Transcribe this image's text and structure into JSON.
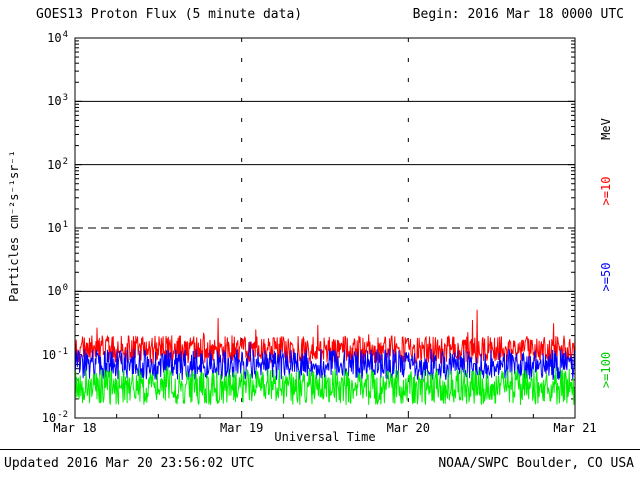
{
  "header": {
    "title": "GOES13 Proton Flux (5 minute data)",
    "begin": "Begin: 2016 Mar 18 0000 UTC"
  },
  "footer": {
    "updated": "Updated 2016 Mar 20 23:56:02 UTC",
    "source": "NOAA/SWPC Boulder, CO USA"
  },
  "right_axis": {
    "unit_label": "MeV",
    "unit_color": "#000000",
    "series_labels": [
      {
        "text": ">=10",
        "color": "#ff0000"
      },
      {
        "text": ">=50",
        "color": "#0000ff"
      },
      {
        "text": ">=100",
        "color": "#00cc00"
      }
    ]
  },
  "chart_data": {
    "type": "line",
    "title": "GOES13 Proton Flux (5 minute data)",
    "xlabel": "Universal Time",
    "ylabel": "Particles cm⁻²s⁻¹sr⁻¹",
    "x_tick_labels": [
      "Mar 18",
      "Mar 19",
      "Mar 20",
      "Mar 21"
    ],
    "x_range_days": 3,
    "points_per_day": 288,
    "x_minor_tick_hours": 6,
    "y_scale": "log",
    "ylim": [
      0.01,
      10000
    ],
    "y_tick_exponents": [
      4,
      3,
      2,
      1,
      0,
      -1,
      -2
    ],
    "hlines_solid_exponents": [
      3,
      2,
      0
    ],
    "hlines_dashed_exponents": [
      1
    ],
    "vlines_dotted_x_days": [
      1,
      2
    ],
    "grid": "thresholds-only",
    "legend_position": "right-rotated",
    "noise_seed": 20160318,
    "series": [
      {
        "name": ">=10 MeV",
        "color": "#ff0000",
        "baseline": 0.12,
        "log_jitter": 0.22,
        "spike_prob": 0.012,
        "spike_log": 0.45
      },
      {
        "name": ">=50 MeV",
        "color": "#0000ff",
        "baseline": 0.07,
        "log_jitter": 0.24,
        "spike_prob": 0.006,
        "spike_log": 0.28
      },
      {
        "name": ">=100 MeV",
        "color": "#00ee00",
        "baseline": 0.031,
        "log_jitter": 0.28,
        "spike_prob": 0.005,
        "spike_log": 0.25
      }
    ]
  }
}
